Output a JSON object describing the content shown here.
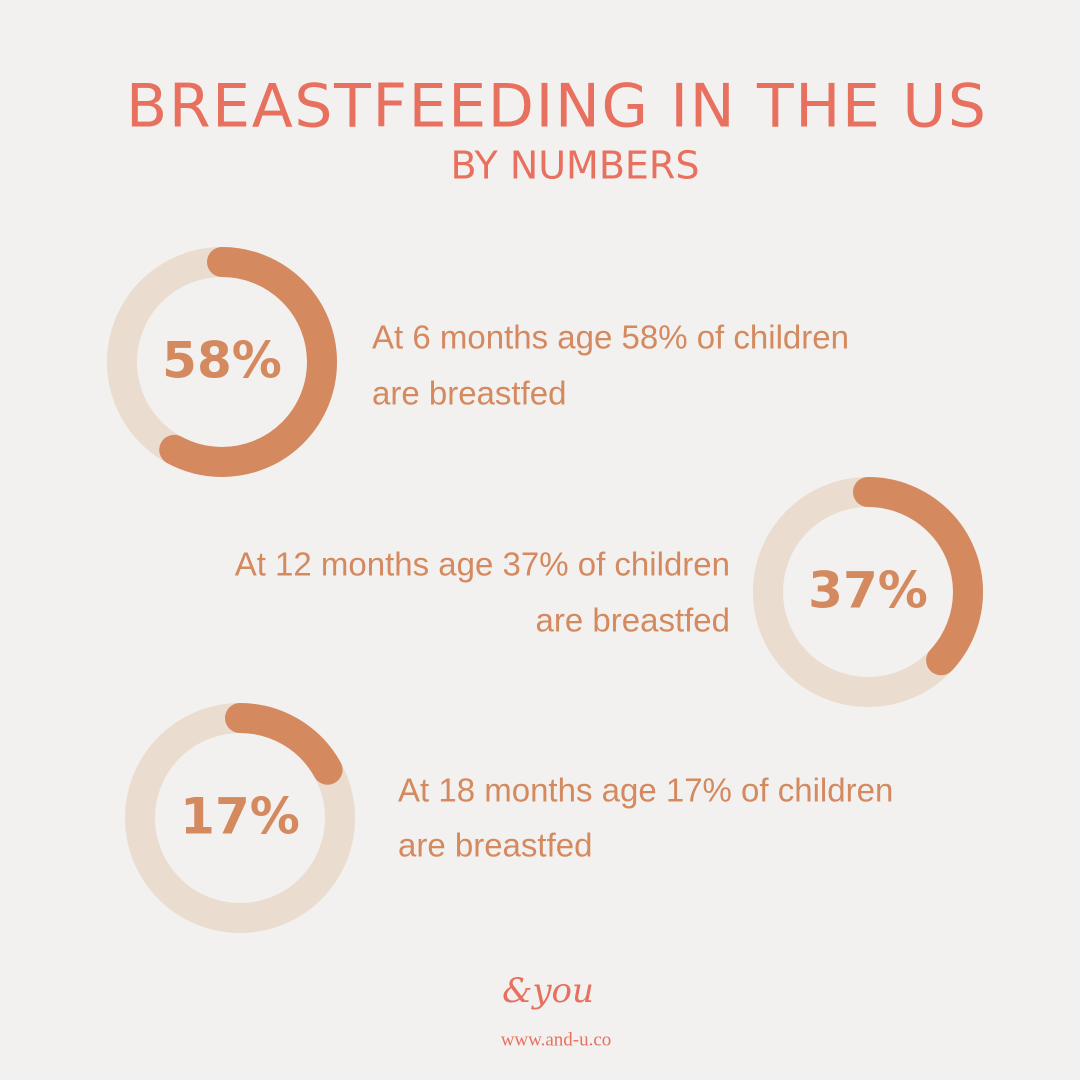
{
  "title": "BREASTFEEDING IN THE US",
  "subtitle": "BY NUMBERS",
  "chart_data": [
    {
      "type": "donut",
      "values": [
        58
      ],
      "value_labels": [
        "58%"
      ],
      "color": "#d4895f",
      "track_color": "#eadccf",
      "caption": [
        "At 6 months age 58% of children",
        "are breastfed"
      ]
    },
    {
      "type": "donut",
      "values": [
        37
      ],
      "value_labels": [
        "37%"
      ],
      "color": "#d4895f",
      "track_color": "#eadccf",
      "caption": [
        "At 12 months age 37% of children",
        "are breastfed"
      ]
    },
    {
      "type": "donut",
      "values": [
        17
      ],
      "value_labels": [
        "17%"
      ],
      "color": "#d4895f",
      "track_color": "#eadccf",
      "caption": [
        "At 18 months age 17% of children",
        "are breastfed"
      ]
    }
  ],
  "footer": {
    "logo": "&you",
    "website": "www.and-u.co"
  }
}
